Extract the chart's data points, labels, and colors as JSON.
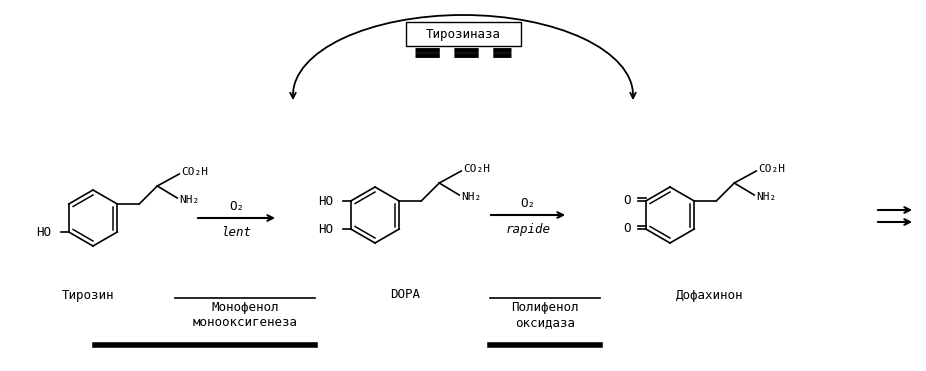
{
  "bg_color": "#ffffff",
  "tyrosinase_label": "Тирозиназа",
  "tyrosin_label": "Тирозин",
  "monophenol_label1": "Монофенол",
  "monophenol_label2": "монооксигенеза",
  "dopa_label": "DOPA",
  "polyphenol_label1": "Полифенол",
  "polyphenol_label2": "оксидаза",
  "dopaquinone_label": "Дофахинон",
  "lent_label": "lent",
  "rapide_label": "rapide"
}
